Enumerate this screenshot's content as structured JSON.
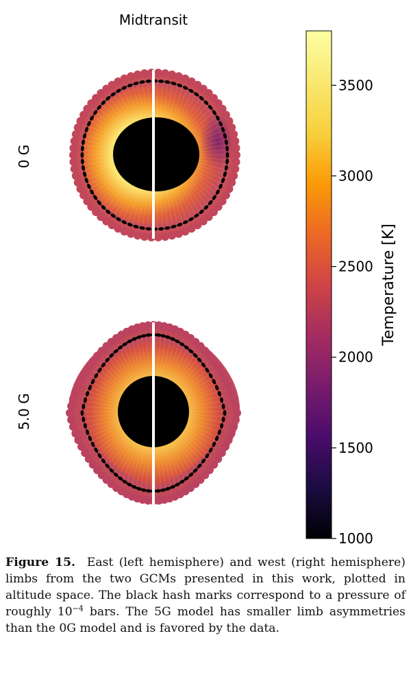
{
  "panel_title": "Midtransit",
  "row_labels": [
    "0 G",
    "5.0 G"
  ],
  "colorbar": {
    "label": "Temperature [K]",
    "ticks": [
      1000,
      1500,
      2000,
      2500,
      3000,
      3500
    ],
    "range": [
      1000,
      3800
    ],
    "colormap": "inferno"
  },
  "caption": {
    "label": "Figure 15.",
    "text_part1": "East (left hemisphere) and west (right hemisphere) limbs from the two GCMs presented in this work, plotted in altitude space. The black hash marks correspond to a pressure of roughly 10",
    "exponent": "−4",
    "text_part2": " bars. The 5G model has smaller limb asymmetries than the 0G model and is favored by the data."
  }
}
